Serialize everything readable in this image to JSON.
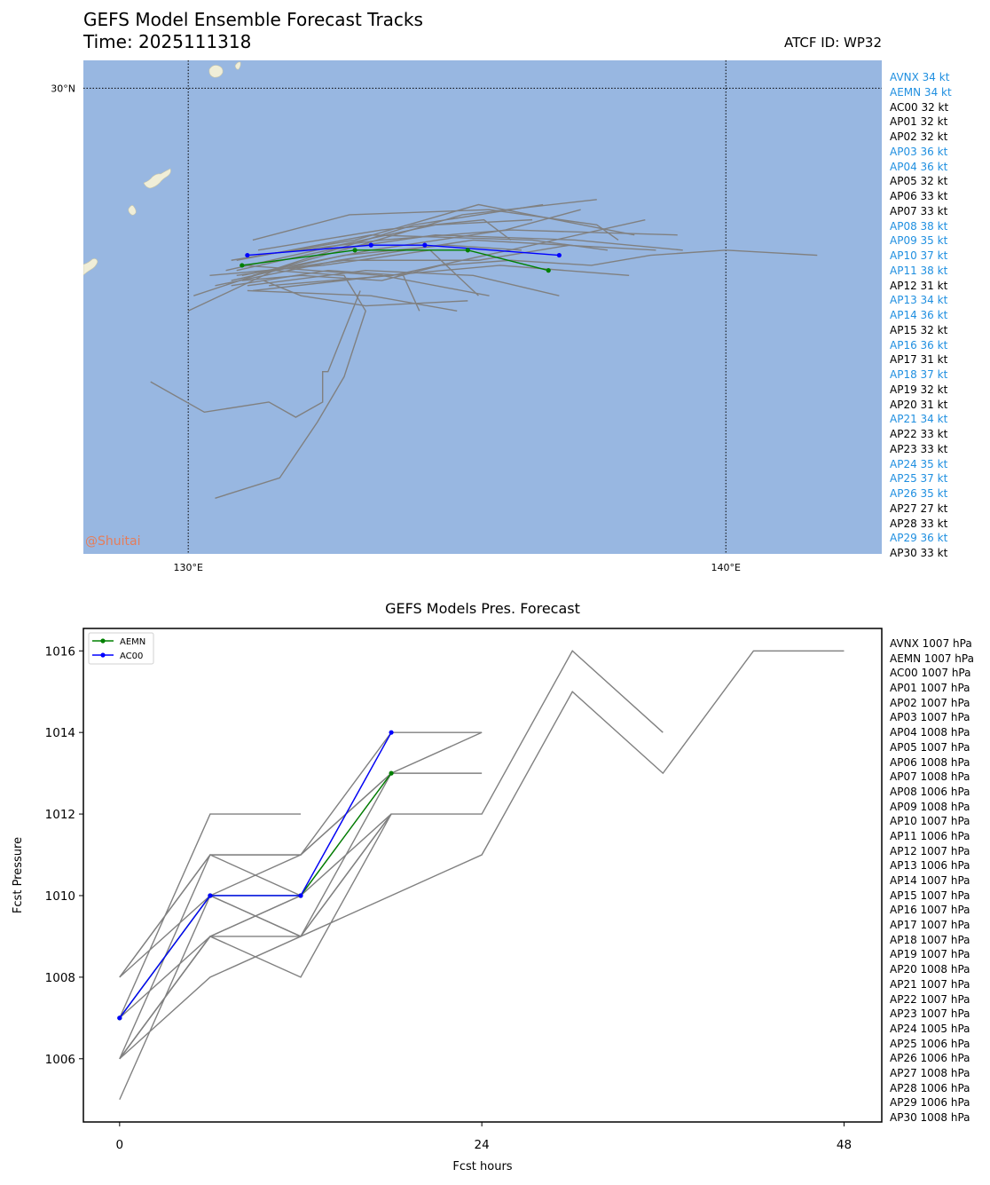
{
  "header": {
    "title": "GEFS Model Ensemble Forecast Tracks",
    "time_label": "Time: 2025111318",
    "atcf_label": "ATCF ID: WP32",
    "credit": "@Shuitai"
  },
  "colors": {
    "ocean": "#98b7e1",
    "land": "#f0eed8",
    "ensemble": "#808080",
    "aemn": "#008000",
    "ac00": "#0000ff",
    "highlight_text": "#1f8fe0",
    "normal_text": "#000000"
  },
  "map": {
    "lat_label": "30°N",
    "lon_labels": [
      "130°E",
      "140°E"
    ],
    "legend": [
      {
        "label": "AVNX 34 kt",
        "highlight": true
      },
      {
        "label": "AEMN 34 kt",
        "highlight": true
      },
      {
        "label": "AC00 32 kt",
        "highlight": false
      },
      {
        "label": "AP01 32 kt",
        "highlight": false
      },
      {
        "label": "AP02 32 kt",
        "highlight": false
      },
      {
        "label": "AP03 36 kt",
        "highlight": true
      },
      {
        "label": "AP04 36 kt",
        "highlight": true
      },
      {
        "label": "AP05 32 kt",
        "highlight": false
      },
      {
        "label": "AP06 33 kt",
        "highlight": false
      },
      {
        "label": "AP07 33 kt",
        "highlight": false
      },
      {
        "label": "AP08 38 kt",
        "highlight": true
      },
      {
        "label": "AP09 35 kt",
        "highlight": true
      },
      {
        "label": "AP10 37 kt",
        "highlight": true
      },
      {
        "label": "AP11 38 kt",
        "highlight": true
      },
      {
        "label": "AP12 31 kt",
        "highlight": false
      },
      {
        "label": "AP13 34 kt",
        "highlight": true
      },
      {
        "label": "AP14 36 kt",
        "highlight": true
      },
      {
        "label": "AP15 32 kt",
        "highlight": false
      },
      {
        "label": "AP16 36 kt",
        "highlight": true
      },
      {
        "label": "AP17 31 kt",
        "highlight": false
      },
      {
        "label": "AP18 37 kt",
        "highlight": true
      },
      {
        "label": "AP19 32 kt",
        "highlight": false
      },
      {
        "label": "AP20 31 kt",
        "highlight": false
      },
      {
        "label": "AP21 34 kt",
        "highlight": true
      },
      {
        "label": "AP22 33 kt",
        "highlight": false
      },
      {
        "label": "AP23 33 kt",
        "highlight": false
      },
      {
        "label": "AP24 35 kt",
        "highlight": true
      },
      {
        "label": "AP25 37 kt",
        "highlight": true
      },
      {
        "label": "AP26 35 kt",
        "highlight": true
      },
      {
        "label": "AP27 27 kt",
        "highlight": false
      },
      {
        "label": "AP28 33 kt",
        "highlight": false
      },
      {
        "label": "AP29 36 kt",
        "highlight": true
      },
      {
        "label": "AP30 33 kt",
        "highlight": false
      }
    ]
  },
  "chart_data": [
    {
      "type": "line",
      "title": "GEFS Model Ensemble Forecast Tracks",
      "xlabel": "Longitude",
      "ylabel": "Latitude",
      "xlim": [
        128.05,
        142.9
      ],
      "ylim": [
        20.8,
        30.55
      ],
      "gridlines": {
        "lon": [
          130,
          140
        ],
        "lat": [
          30
        ]
      },
      "highlight_series": [
        {
          "name": "AC00",
          "points": [
            [
              131.1,
              26.7
            ],
            [
              133.4,
              26.9
            ],
            [
              134.4,
              26.9
            ],
            [
              136.9,
              26.7
            ]
          ]
        },
        {
          "name": "AEMN",
          "points": [
            [
              131.0,
              26.5
            ],
            [
              133.1,
              26.8
            ],
            [
              135.2,
              26.8
            ],
            [
              136.7,
              26.4
            ]
          ]
        }
      ],
      "ensemble_tracks": [
        [
          [
            129.3,
            24.2
          ],
          [
            130.3,
            23.6
          ],
          [
            131.5,
            23.8
          ],
          [
            132.0,
            23.5
          ],
          [
            132.5,
            23.8
          ],
          [
            132.5,
            24.4
          ],
          [
            132.6,
            24.4
          ],
          [
            133.2,
            26.0
          ]
        ],
        [
          [
            130.5,
            21.9
          ],
          [
            131.7,
            22.3
          ],
          [
            132.4,
            23.4
          ],
          [
            132.9,
            24.3
          ],
          [
            133.3,
            25.6
          ],
          [
            132.9,
            26.3
          ],
          [
            131.6,
            26.4
          ],
          [
            130.0,
            25.6
          ]
        ],
        [
          [
            131.0,
            26.2
          ],
          [
            132.1,
            26.3
          ],
          [
            133.6,
            26.2
          ],
          [
            134.7,
            26.5
          ],
          [
            136.0,
            26.6
          ],
          [
            137.5,
            26.5
          ],
          [
            138.6,
            26.7
          ],
          [
            140.0,
            26.8
          ],
          [
            141.7,
            26.7
          ]
        ],
        [
          [
            130.9,
            26.4
          ],
          [
            132.6,
            26.8
          ],
          [
            134.6,
            27.1
          ],
          [
            137.2,
            27.0
          ],
          [
            139.2,
            26.8
          ]
        ],
        [
          [
            131.2,
            27.0
          ],
          [
            133.0,
            27.5
          ],
          [
            135.6,
            27.6
          ],
          [
            137.6,
            27.3
          ],
          [
            138.0,
            27.0
          ]
        ],
        [
          [
            130.1,
            25.9
          ],
          [
            132.1,
            26.6
          ],
          [
            134.2,
            27.3
          ],
          [
            136.6,
            27.7
          ]
        ],
        [
          [
            131.2,
            26.0
          ],
          [
            133.7,
            26.3
          ],
          [
            135.8,
            26.5
          ],
          [
            138.2,
            26.3
          ]
        ],
        [
          [
            131.0,
            26.3
          ],
          [
            133.4,
            26.8
          ],
          [
            135.9,
            27.2
          ],
          [
            137.3,
            27.6
          ]
        ],
        [
          [
            130.5,
            26.1
          ],
          [
            132.8,
            26.6
          ],
          [
            135.3,
            27.0
          ],
          [
            138.7,
            26.8
          ]
        ],
        [
          [
            131.3,
            26.7
          ],
          [
            133.6,
            27.0
          ],
          [
            136.0,
            27.2
          ],
          [
            139.1,
            27.1
          ]
        ],
        [
          [
            131.5,
            26.1
          ],
          [
            133.8,
            26.3
          ],
          [
            136.4,
            26.9
          ],
          [
            138.5,
            27.4
          ]
        ],
        [
          [
            130.9,
            26.3
          ],
          [
            132.9,
            26.6
          ],
          [
            135.4,
            26.6
          ],
          [
            137.1,
            26.9
          ]
        ],
        [
          [
            130.8,
            26.6
          ],
          [
            133.1,
            27.0
          ],
          [
            135.4,
            27.7
          ],
          [
            138.3,
            27.1
          ]
        ],
        [
          [
            131.0,
            26.5
          ],
          [
            133.6,
            26.3
          ],
          [
            135.6,
            25.9
          ]
        ],
        [
          [
            131.4,
            26.2
          ],
          [
            132.1,
            25.9
          ],
          [
            133.3,
            25.7
          ],
          [
            135.2,
            25.8
          ]
        ],
        [
          [
            131.1,
            26.1
          ],
          [
            133.3,
            26.4
          ],
          [
            135.3,
            26.3
          ],
          [
            136.9,
            25.9
          ]
        ],
        [
          [
            130.8,
            26.1
          ],
          [
            132.6,
            26.4
          ],
          [
            134.0,
            26.3
          ],
          [
            134.3,
            25.6
          ]
        ],
        [
          [
            130.4,
            26.3
          ],
          [
            132.5,
            26.5
          ],
          [
            134.5,
            26.8
          ],
          [
            135.4,
            25.9
          ]
        ],
        [
          [
            130.7,
            26.4
          ],
          [
            132.8,
            26.9
          ],
          [
            134.6,
            27.3
          ],
          [
            136.4,
            27.4
          ]
        ],
        [
          [
            131.3,
            26.8
          ],
          [
            133.6,
            27.2
          ],
          [
            135.5,
            27.4
          ],
          [
            136.0,
            27.0
          ]
        ],
        [
          [
            130.8,
            26.2
          ],
          [
            132.9,
            26.7
          ],
          [
            134.8,
            26.9
          ],
          [
            136.2,
            26.8
          ]
        ],
        [
          [
            131.2,
            26.3
          ],
          [
            133.2,
            26.9
          ],
          [
            135.1,
            27.5
          ],
          [
            137.6,
            27.8
          ]
        ],
        [
          [
            130.9,
            26.6
          ],
          [
            133.4,
            27.1
          ],
          [
            136.4,
            27.0
          ],
          [
            137.8,
            26.8
          ]
        ],
        [
          [
            131.1,
            26.0
          ],
          [
            133.4,
            25.9
          ],
          [
            135.0,
            25.6
          ]
        ]
      ]
    },
    {
      "type": "line",
      "title": "GEFS Models Pres. Forecast",
      "xlabel": "Fcst hours",
      "ylabel": "Fcst Pressure",
      "xlim": [
        -2.4,
        50.5
      ],
      "ylim": [
        1004.45,
        1016.55
      ],
      "xticks": [
        0,
        24,
        48
      ],
      "yticks": [
        1006,
        1008,
        1010,
        1012,
        1014,
        1016
      ],
      "series": [
        {
          "name": "AEMN",
          "highlight": true,
          "points": [
            [
              0,
              1007
            ],
            [
              6,
              1010
            ],
            [
              12,
              1010
            ],
            [
              18,
              1013
            ]
          ]
        },
        {
          "name": "AC00",
          "highlight": true,
          "points": [
            [
              0,
              1007
            ],
            [
              6,
              1010
            ],
            [
              12,
              1010
            ],
            [
              18,
              1014
            ]
          ]
        },
        {
          "name": "ens1",
          "points": [
            [
              0,
              1007
            ],
            [
              6,
              1012
            ],
            [
              12,
              1012
            ]
          ]
        },
        {
          "name": "ens2",
          "points": [
            [
              0,
              1008
            ],
            [
              6,
              1011
            ],
            [
              12,
              1011
            ],
            [
              18,
              1014
            ],
            [
              24,
              1014
            ]
          ]
        },
        {
          "name": "ens3",
          "points": [
            [
              0,
              1008
            ],
            [
              6,
              1010
            ],
            [
              12,
              1011
            ],
            [
              18,
              1013
            ],
            [
              24,
              1014
            ]
          ]
        },
        {
          "name": "ens4",
          "points": [
            [
              0,
              1006
            ],
            [
              6,
              1011
            ],
            [
              12,
              1010
            ],
            [
              18,
              1013
            ],
            [
              24,
              1013
            ]
          ]
        },
        {
          "name": "ens5",
          "points": [
            [
              0,
              1006
            ],
            [
              6,
              1009
            ],
            [
              12,
              1009
            ],
            [
              18,
              1012
            ],
            [
              24,
              1012
            ],
            [
              30,
              1016
            ],
            [
              36,
              1014
            ]
          ]
        },
        {
          "name": "ens6",
          "points": [
            [
              0,
              1006
            ],
            [
              6,
              1009
            ],
            [
              12,
              1008
            ],
            [
              18,
              1012
            ]
          ]
        },
        {
          "name": "ens7",
          "points": [
            [
              0,
              1005
            ],
            [
              6,
              1010
            ],
            [
              12,
              1009
            ],
            [
              18,
              1013
            ]
          ]
        },
        {
          "name": "ens8",
          "points": [
            [
              0,
              1006
            ],
            [
              6,
              1008
            ],
            [
              12,
              1009
            ],
            [
              24,
              1011
            ],
            [
              30,
              1015
            ],
            [
              36,
              1013
            ],
            [
              42,
              1016
            ],
            [
              48,
              1016
            ]
          ]
        },
        {
          "name": "ens9",
          "points": [
            [
              0,
              1007
            ],
            [
              6,
              1009
            ],
            [
              12,
              1010
            ],
            [
              18,
              1012
            ]
          ]
        },
        {
          "name": "ens10",
          "points": [
            [
              0,
              1008
            ],
            [
              6,
              1011
            ],
            [
              12,
              1011
            ],
            [
              18,
              1013
            ]
          ]
        },
        {
          "name": "ens11",
          "points": [
            [
              0,
              1006
            ],
            [
              6,
              1009
            ],
            [
              12,
              1010
            ],
            [
              18,
              1014
            ]
          ]
        },
        {
          "name": "ens12",
          "points": [
            [
              0,
              1007
            ],
            [
              6,
              1010
            ],
            [
              12,
              1009
            ],
            [
              18,
              1012
            ]
          ]
        }
      ],
      "legend": [
        "AEMN",
        "AC00"
      ],
      "right_labels": [
        "AVNX 1007 hPa",
        "AEMN 1007 hPa",
        "AC00 1007 hPa",
        "AP01 1007 hPa",
        "AP02 1007 hPa",
        "AP03 1007 hPa",
        "AP04 1008 hPa",
        "AP05 1007 hPa",
        "AP06 1008 hPa",
        "AP07 1008 hPa",
        "AP08 1006 hPa",
        "AP09 1008 hPa",
        "AP10 1007 hPa",
        "AP11 1006 hPa",
        "AP12 1007 hPa",
        "AP13 1006 hPa",
        "AP14 1007 hPa",
        "AP15 1007 hPa",
        "AP16 1007 hPa",
        "AP17 1007 hPa",
        "AP18 1007 hPa",
        "AP19 1007 hPa",
        "AP20 1008 hPa",
        "AP21 1007 hPa",
        "AP22 1007 hPa",
        "AP23 1007 hPa",
        "AP24 1005 hPa",
        "AP25 1006 hPa",
        "AP26 1006 hPa",
        "AP27 1008 hPa",
        "AP28 1006 hPa",
        "AP29 1006 hPa",
        "AP30 1008 hPa"
      ]
    }
  ]
}
